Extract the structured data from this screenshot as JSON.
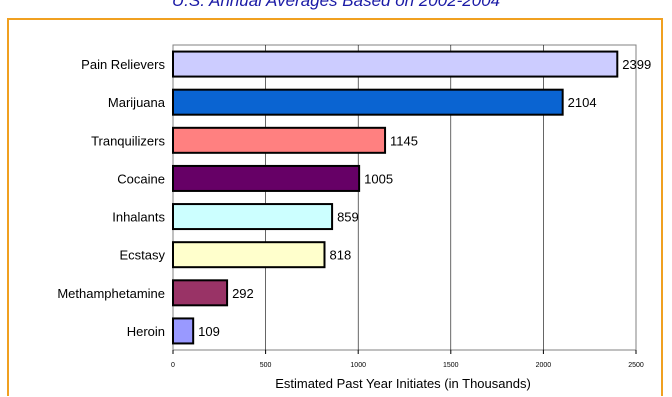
{
  "subtitle": "U.S. Annual Averages Based on 2002-2004",
  "chart_data": {
    "type": "bar",
    "orientation": "horizontal",
    "categories": [
      "Pain Relievers",
      "Marijuana",
      "Tranquilizers",
      "Cocaine",
      "Inhalants",
      "Ecstasy",
      "Methamphetamine",
      "Heroin"
    ],
    "values": [
      2399,
      2104,
      1145,
      1005,
      859,
      818,
      292,
      109
    ],
    "colors": [
      "#ccccff",
      "#0a64d2",
      "#ff8080",
      "#660066",
      "#ccffff",
      "#ffffcc",
      "#993366",
      "#9999ff"
    ],
    "xlabel": "Estimated Past Year Initiates (in Thousands)",
    "xlim": [
      0,
      2500
    ],
    "xticks": [
      0,
      500,
      1000,
      1500,
      2000,
      2500
    ],
    "grid": true
  }
}
